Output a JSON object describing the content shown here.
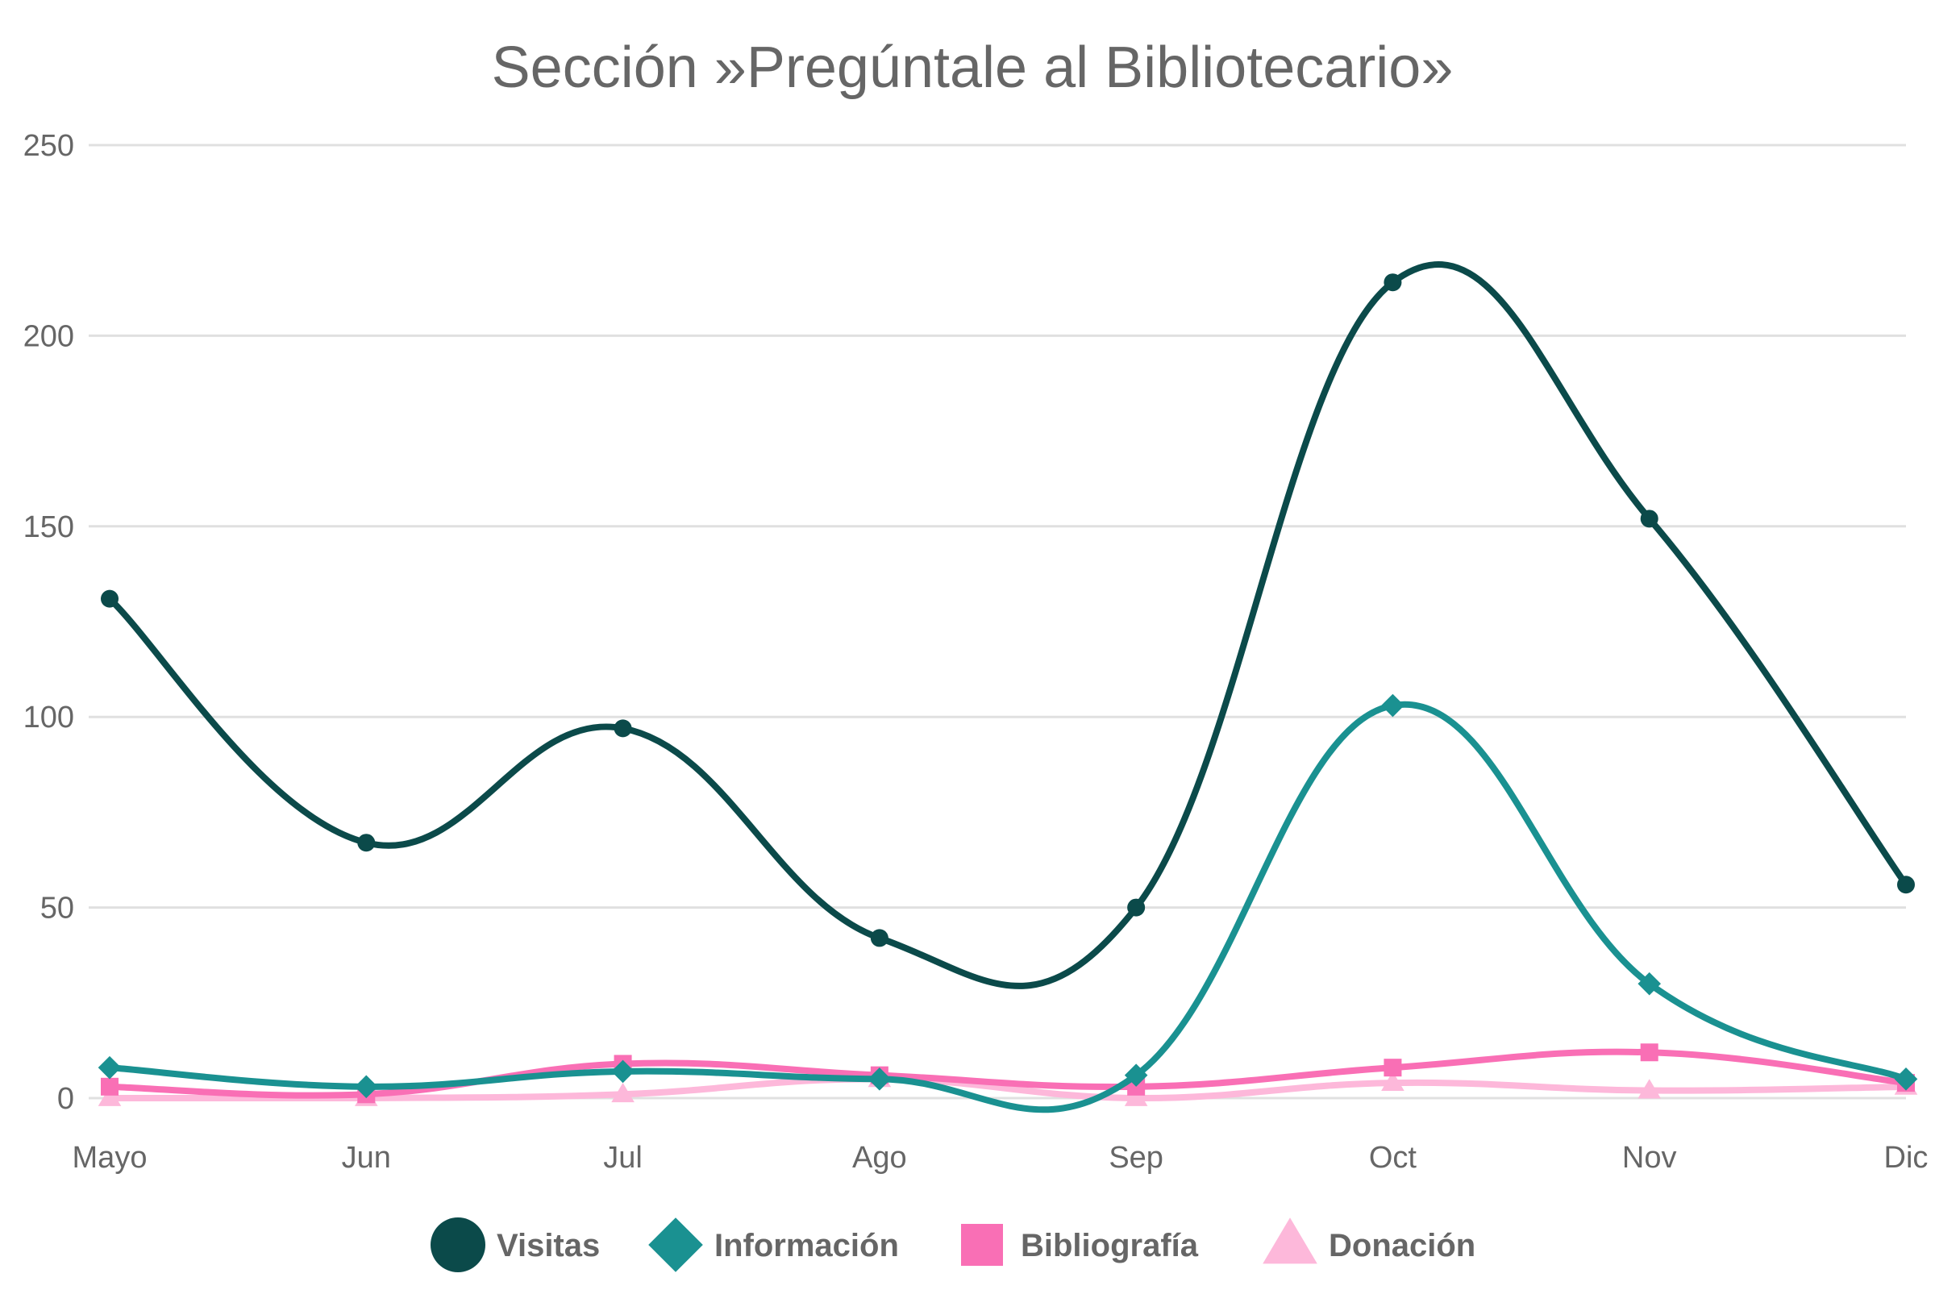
{
  "chart_data": {
    "type": "line",
    "title": "Sección »Pregúntale al Bibliotecario»",
    "xlabel": "",
    "ylabel": "",
    "categories": [
      "Mayo",
      "Jun",
      "Jul",
      "Ago",
      "Sep",
      "Oct",
      "Nov",
      "Dic"
    ],
    "ylim": [
      0,
      250
    ],
    "yticks": [
      0,
      50,
      100,
      150,
      200,
      250
    ],
    "grid": true,
    "legend_position": "bottom-center",
    "smooth": true,
    "series": [
      {
        "name": "Visitas",
        "color": "#0b4a4a",
        "marker": "circle",
        "values": [
          131,
          67,
          97,
          42,
          50,
          214,
          152,
          56
        ]
      },
      {
        "name": "Información",
        "color": "#1a9191",
        "marker": "diamond",
        "values": [
          8,
          3,
          7,
          5,
          6,
          103,
          30,
          5
        ]
      },
      {
        "name": "Bibliografía",
        "color": "#f96fb5",
        "marker": "square",
        "values": [
          3,
          1,
          9,
          6,
          3,
          8,
          12,
          4
        ]
      },
      {
        "name": "Donación",
        "color": "#fdb8da",
        "marker": "triangle",
        "values": [
          0,
          0,
          1,
          5,
          0,
          4,
          2,
          3
        ]
      }
    ]
  }
}
